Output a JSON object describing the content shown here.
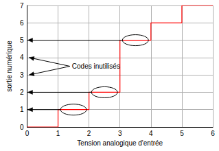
{
  "chart_data": {
    "type": "step",
    "x_label": "Tension analogique d'entrée",
    "y_label": "sortie numérique",
    "bins": [
      0,
      1,
      2,
      3,
      4,
      5,
      6
    ],
    "values": [
      0,
      1,
      2,
      5,
      6,
      7
    ],
    "color": "#ff0000",
    "xlim": [
      0,
      6
    ],
    "xticks": [
      0,
      1,
      2,
      3,
      4,
      5,
      6
    ],
    "ylim": [
      0,
      7
    ],
    "yticks": [
      0,
      1,
      2,
      3,
      4,
      5,
      6,
      7
    ],
    "grid": true,
    "marked_codes": [
      1,
      2,
      5
    ],
    "annotations": [
      {
        "text": "Codes inutilisés",
        "x": 1.45,
        "y": 3.5,
        "points_to": [
          3,
          4
        ]
      }
    ]
  }
}
